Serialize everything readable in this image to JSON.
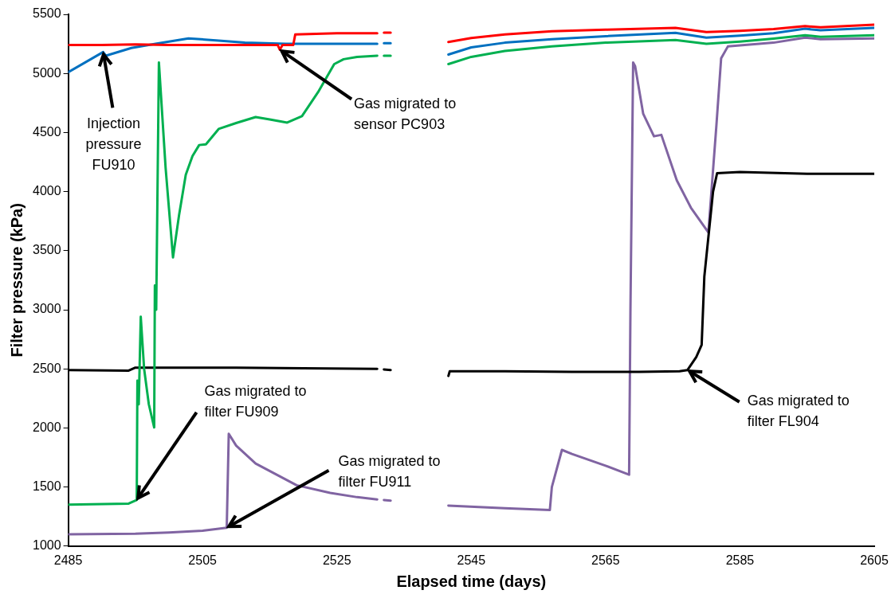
{
  "chart_data": {
    "type": "line",
    "xlabel": "Elapsed time (days)",
    "ylabel": "Filter pressure (kPa)",
    "xlim": [
      2485,
      2605
    ],
    "xticks": [
      2485,
      2505,
      2525,
      2545,
      2565,
      2585,
      2605
    ],
    "ylim": [
      1000,
      5500
    ],
    "yticks": [
      1000,
      1500,
      2000,
      2500,
      3000,
      3500,
      4000,
      4500,
      5000,
      5500
    ],
    "grid": false,
    "legend": false,
    "series": [
      {
        "color": "#ff0000",
        "x": [
          2485,
          2490,
          2495,
          2500,
          2505,
          2510,
          2515,
          2516.2,
          2516.5,
          2516.9,
          2518.5,
          2518.8,
          2525,
          2531,
          2531.5,
          2532,
          2533,
          2537,
          2541.6,
          2545,
          2550,
          2557,
          2565,
          2575.4,
          2580,
          2585,
          2590,
          2594.7,
          2597,
          2605
        ],
        "values": [
          5240,
          5240,
          5245,
          5240,
          5240,
          5240,
          5240,
          5240,
          5200,
          5240,
          5240,
          5330,
          5340,
          5340,
          null,
          5345,
          5345,
          null,
          5266,
          5300,
          5330,
          5357,
          5370,
          5385,
          5350,
          5360,
          5375,
          5400,
          5390,
          5412
        ]
      },
      {
        "color": "#0070c0",
        "x": [
          2485,
          2490.2,
          2490.6,
          2494.4,
          2498,
          2502.9,
          2507,
          2511.3,
          2517.4,
          2525,
          2531,
          2531.5,
          2532,
          2533,
          2537,
          2541.6,
          2545,
          2550,
          2557,
          2565,
          2575.4,
          2580,
          2585,
          2590,
          2594.7,
          2597,
          2605
        ],
        "values": [
          5010,
          5181,
          5150,
          5215,
          5250,
          5296,
          5280,
          5260,
          5250,
          5250,
          5250,
          null,
          5255,
          5255,
          null,
          5160,
          5220,
          5260,
          5290,
          5315,
          5344,
          5303,
          5320,
          5340,
          5378,
          5365,
          5385
        ]
      },
      {
        "color": "#00b050",
        "x": [
          2485,
          2494,
          2495.2,
          2495.3,
          2495.5,
          2495.8,
          2496.3,
          2497,
          2497.8,
          2497.9,
          2498.1,
          2498.5,
          2499.5,
          2500.6,
          2501.5,
          2502.5,
          2503.5,
          2504.5,
          2505.5,
          2507.4,
          2510,
          2512.9,
          2515,
          2517.6,
          2519.8,
          2522.2,
          2524.6,
          2526,
          2528,
          2531,
          2531.5,
          2532,
          2533,
          2537,
          2541.6,
          2545,
          2550,
          2557,
          2565,
          2575.4,
          2580,
          2585,
          2590,
          2594.7,
          2597,
          2605
        ],
        "values": [
          1350,
          1360,
          1390,
          2400,
          2200,
          2941,
          2500,
          2200,
          2004,
          3206,
          3000,
          5093,
          4200,
          3443,
          3800,
          4142,
          4300,
          4394,
          4400,
          4530,
          4580,
          4631,
          4610,
          4584,
          4638,
          4842,
          5079,
          5120,
          5140,
          5150,
          null,
          5150,
          5150,
          null,
          5079,
          5140,
          5190,
          5228,
          5260,
          5283,
          5250,
          5270,
          5295,
          5323,
          5310,
          5323
        ]
      },
      {
        "color": "#000000",
        "x": [
          2485,
          2494,
          2495,
          2510,
          2520,
          2531,
          2531.5,
          2532,
          2533,
          2537,
          2541.6,
          2541.8,
          2550,
          2560,
          2570,
          2576,
          2577.2,
          2578.5,
          2579.3,
          2579.7,
          2581,
          2581.6,
          2585,
          2595,
          2605
        ],
        "values": [
          2490,
          2485,
          2510,
          2510,
          2505,
          2500,
          null,
          2495,
          2490,
          null,
          2440,
          2480,
          2480,
          2475,
          2475,
          2480,
          2490,
          2600,
          2703,
          3280,
          4000,
          4156,
          4165,
          4150,
          4150
        ]
      },
      {
        "color": "#8064a2",
        "x": [
          2485,
          2495,
          2500,
          2505,
          2508.6,
          2508.9,
          2510,
          2512.9,
          2519,
          2524,
          2528,
          2531,
          2531.5,
          2532,
          2533,
          2537,
          2541.6,
          2550,
          2556.7,
          2557,
          2558.5,
          2560,
          2565,
          2568.5,
          2568.7,
          2569.1,
          2569.4,
          2570.6,
          2572.2,
          2573.3,
          2575.6,
          2577.7,
          2580.3,
          2581.5,
          2582.2,
          2583.2,
          2590,
          2594.7,
          2597,
          2605
        ],
        "values": [
          1100,
          1105,
          1115,
          1130,
          1156,
          1950,
          1850,
          1699,
          1515,
          1450,
          1414,
          1395,
          null,
          1390,
          1385,
          null,
          1343,
          1320,
          1305,
          1500,
          1814,
          1780,
          1680,
          1604,
          3000,
          5093,
          5060,
          4658,
          4468,
          4480,
          4095,
          3864,
          3654,
          4563,
          5127,
          5228,
          5260,
          5303,
          5290,
          5297
        ]
      }
    ],
    "annotations": [
      {
        "text": "Injection\npressure\nFU910",
        "x": 2490.2,
        "y": 5181
      },
      {
        "text": "Gas migrated to\nsensor PC903",
        "x": 2516.5,
        "y": 5200
      },
      {
        "text": "Gas migrated to\nfilter FU909",
        "x": 2495.2,
        "y": 1390
      },
      {
        "text": "Gas migrated to\nfilter FU911",
        "x": 2508.6,
        "y": 1156
      },
      {
        "text": "Gas migrated to\nfilter FL904",
        "x": 2577.2,
        "y": 2490
      }
    ]
  }
}
